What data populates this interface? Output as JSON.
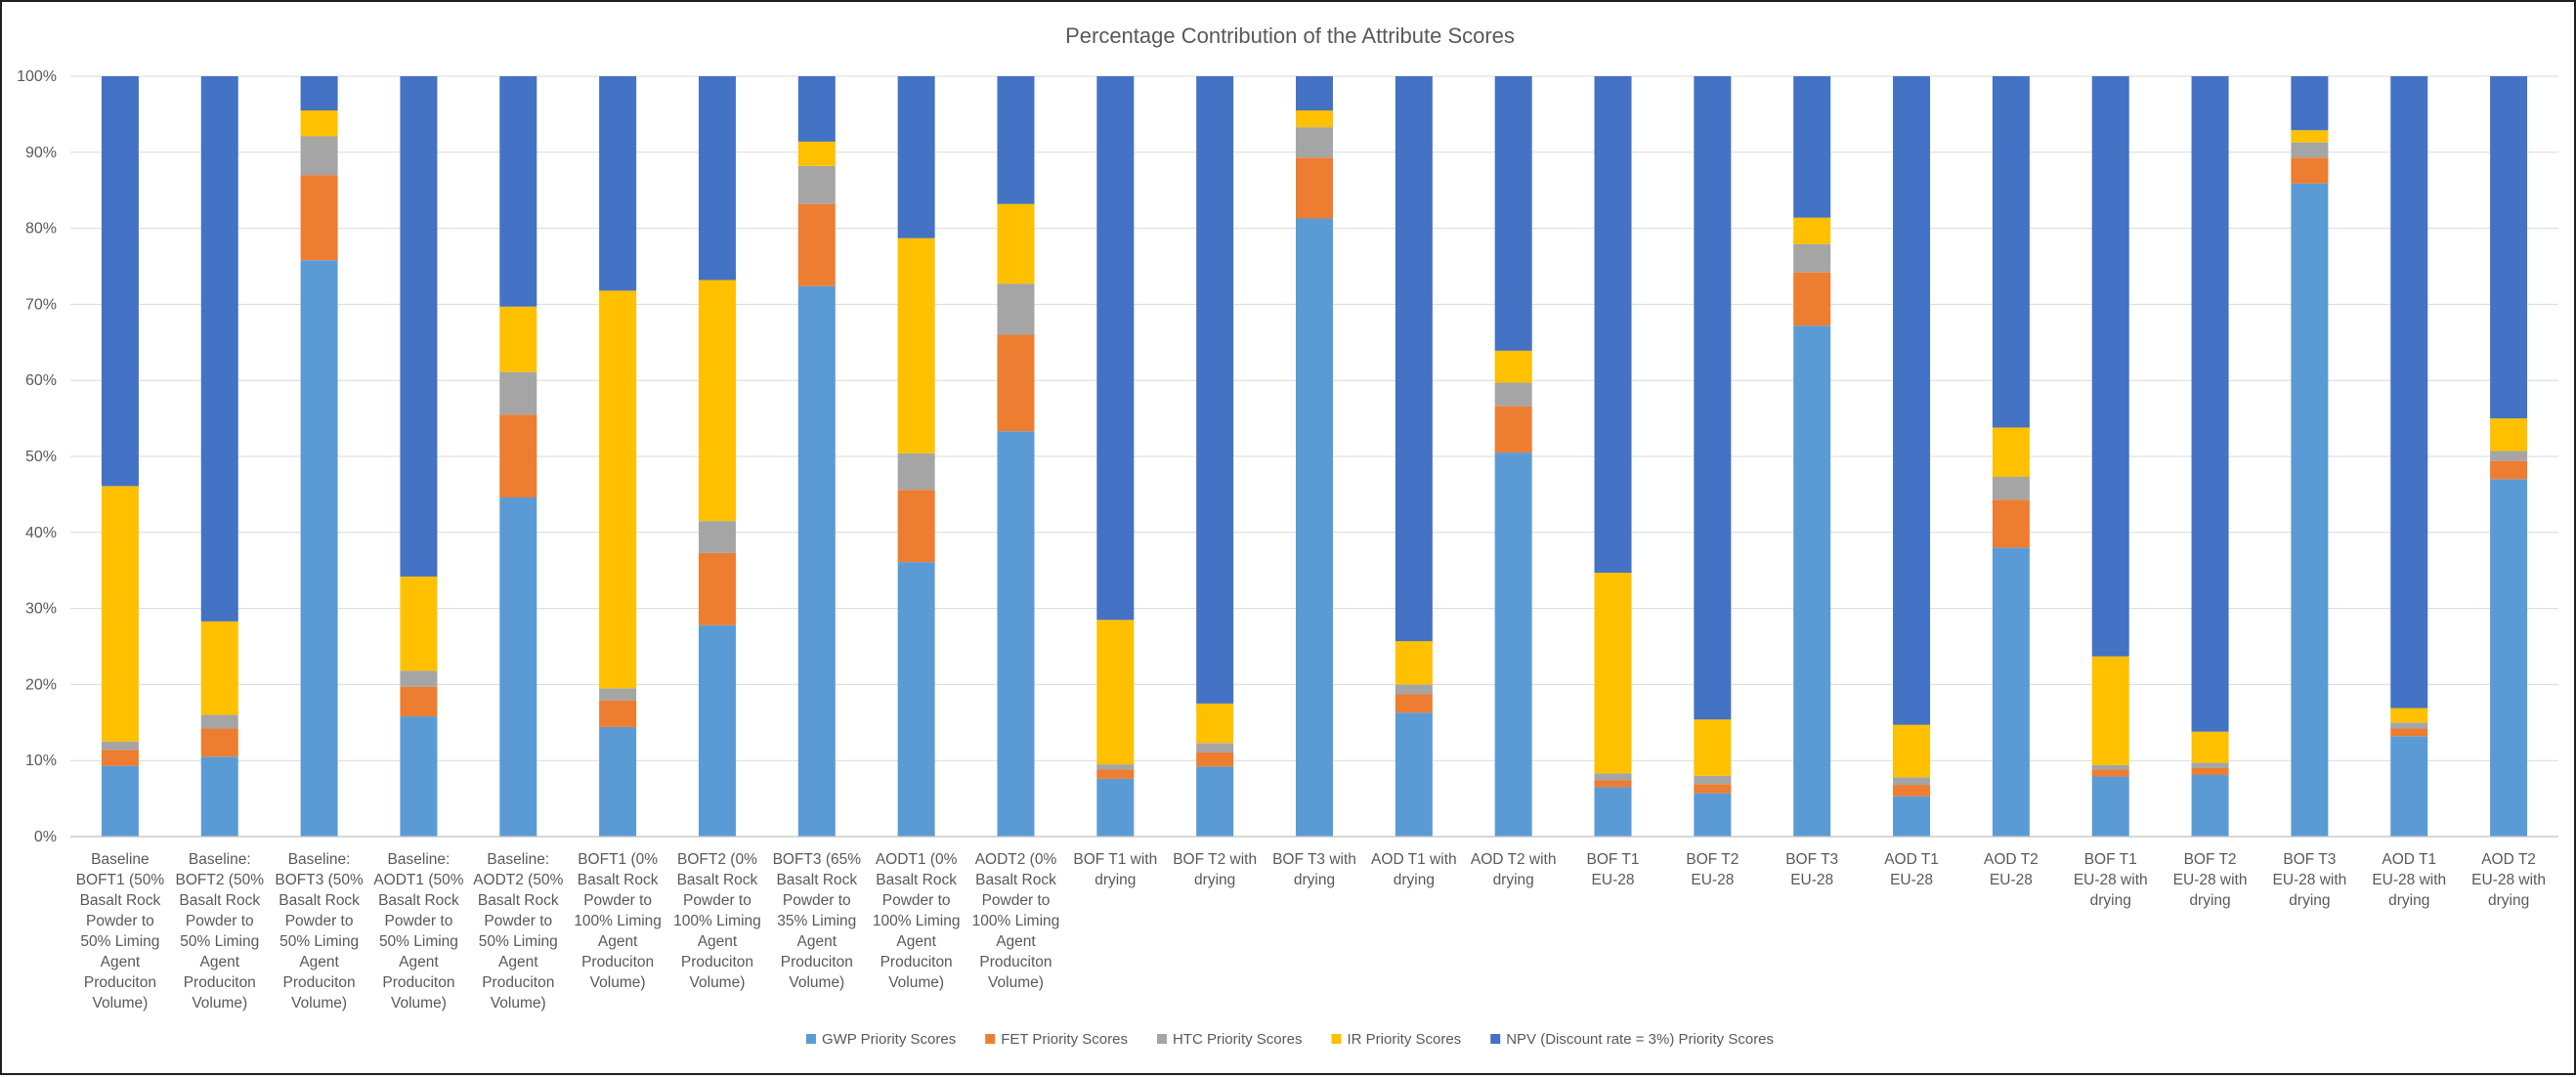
{
  "chart_data": {
    "type": "bar",
    "stacked": "percent",
    "title": "Percentage Contribution of the Attribute Scores",
    "xlabel": "",
    "ylabel": "",
    "ylim": [
      0,
      100
    ],
    "yticks": [
      "0%",
      "10%",
      "20%",
      "30%",
      "40%",
      "50%",
      "60%",
      "70%",
      "80%",
      "90%",
      "100%"
    ],
    "grid": "horizontal",
    "legend_position": "bottom",
    "categories": [
      "Baseline BOFT1 (50% Basalt Rock Powder to 50% Liming Agent Produciton Volume)",
      "Baseline: BOFT2 (50% Basalt Rock Powder to 50% Liming Agent Produciton Volume)",
      "Baseline: BOFT3 (50% Basalt Rock Powder to 50% Liming Agent Produciton Volume)",
      "Baseline: AODT1 (50% Basalt Rock Powder to 50% Liming Agent Produciton Volume)",
      "Baseline: AODT2 (50% Basalt Rock Powder to 50% Liming Agent Produciton Volume)",
      "BOFT1 (0% Basalt Rock Powder to 100% Liming Agent Produciton Volume)",
      "BOFT2 (0% Basalt Rock Powder to 100% Liming Agent Produciton Volume)",
      "BOFT3 (65% Basalt Rock Powder to 35% Liming Agent Produciton Volume)",
      "AODT1 (0% Basalt Rock Powder to 100% Liming Agent Produciton Volume)",
      "AODT2 (0% Basalt Rock Powder to 100% Liming Agent Produciton Volume)",
      "BOF T1 with drying",
      "BOF T2 with drying",
      "BOF T3 with drying",
      "AOD T1 with drying",
      "AOD T2 with drying",
      "BOF T1 EU-28",
      "BOF T2 EU-28",
      "BOF T3 EU-28",
      "AOD T1 EU-28",
      "AOD T2 EU-28",
      "BOF T1 EU-28 with drying",
      "BOF T2 EU-28 with drying",
      "BOF T3 EU-28 with drying",
      "AOD T1 EU-28 with drying",
      "AOD T2 EU-28 with drying"
    ],
    "series": [
      {
        "name": "GWP Priority Scores",
        "color": "#5b9bd5",
        "values": [
          9.3,
          10.5,
          75.8,
          15.8,
          44.6,
          14.4,
          27.8,
          72.4,
          36.1,
          53.3,
          7.6,
          9.2,
          81.3,
          16.3,
          50.5,
          6.5,
          5.7,
          67.2,
          5.3,
          38.0,
          7.9,
          8.1,
          85.9,
          13.2,
          47.0
        ]
      },
      {
        "name": "FET Priority Scores",
        "color": "#ed7d31",
        "values": [
          2.1,
          3.7,
          11.2,
          3.9,
          10.9,
          3.5,
          9.5,
          10.8,
          9.5,
          12.7,
          1.2,
          1.9,
          8.0,
          2.4,
          6.1,
          0.9,
          1.2,
          7.0,
          1.5,
          6.3,
          0.9,
          0.9,
          3.4,
          1.0,
          2.4
        ]
      },
      {
        "name": "HTC Priority Scores",
        "color": "#a5a5a5",
        "values": [
          1.1,
          1.8,
          5.1,
          2.1,
          5.6,
          1.6,
          4.2,
          5.0,
          4.8,
          6.7,
          0.7,
          1.2,
          4.0,
          1.3,
          3.1,
          0.9,
          1.1,
          3.7,
          1.0,
          3.0,
          0.6,
          0.7,
          2.0,
          0.8,
          1.3
        ]
      },
      {
        "name": "IR Priority Scores",
        "color": "#ffc000",
        "values": [
          33.6,
          12.3,
          3.4,
          12.4,
          8.6,
          52.3,
          31.7,
          3.2,
          28.3,
          10.5,
          19.0,
          5.2,
          2.2,
          5.7,
          4.2,
          26.4,
          7.4,
          3.5,
          6.9,
          6.5,
          14.3,
          4.1,
          1.6,
          1.9,
          4.3
        ]
      },
      {
        "name": "NPV (Discount rate = 3%) Priority Scores",
        "color": "#4472c4",
        "values": [
          53.9,
          71.7,
          4.5,
          65.8,
          30.3,
          28.2,
          26.8,
          8.6,
          21.3,
          16.8,
          71.5,
          82.5,
          4.5,
          74.3,
          36.1,
          65.3,
          84.6,
          18.6,
          85.3,
          46.2,
          76.3,
          86.2,
          7.1,
          83.1,
          45.0
        ]
      }
    ]
  }
}
